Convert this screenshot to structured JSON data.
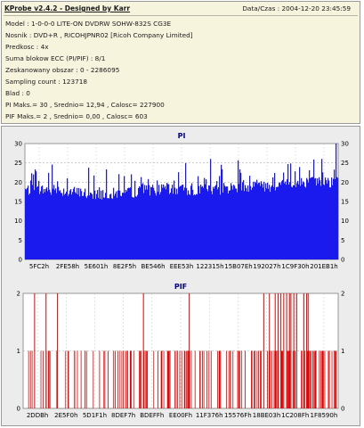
{
  "app": {
    "title": "KProbe v2.4.2 - Designed by Karr",
    "datetime_label": "Data/Czas :",
    "datetime_value": "2004-12-20 23:45:59"
  },
  "info_lines": [
    "Model : 1-0-0-0 LITE-ON DVDRW SOHW-832S  CG3E",
    "Nosnik : DVD+R , RICOHJPNR02 [Ricoh Company Limited]",
    "Predkosc : 4x",
    "Suma blokow ECC (PI/PIF) : 8/1",
    "Zeskanowany obszar : 0 - 2286095",
    "Sampling count : 123718",
    "Blad : 0",
    "PI Maks.= 30 , Srednio= 12,94 , Calosc= 227900",
    "PIF Maks.= 2 , Srednio= 0,00 , Calosc= 603"
  ],
  "colors": {
    "panel_bg": "#f7f4de",
    "chart_bg": "#ffffff",
    "pi_bar": "#1a1aee",
    "pif_bar": "#dd0000",
    "title_color": "#000080"
  },
  "chart_data": [
    {
      "type": "bar",
      "title": "PI",
      "ylim": [
        0,
        30
      ],
      "y_ticks": [
        0,
        5,
        10,
        15,
        20,
        25,
        30
      ],
      "x_ticks": [
        "5FC2h",
        "2FE58h",
        "5E601h",
        "8E2F5h",
        "BE546h",
        "EEE53h",
        "122315h",
        "15B07Eh",
        "192027h",
        "1C9F30h",
        "201EB1h"
      ],
      "grid": true,
      "avg_envelope": [
        18,
        18,
        17,
        17,
        18,
        18,
        18,
        19,
        19,
        20,
        20
      ],
      "peak_envelope": [
        24,
        26,
        25,
        24,
        24,
        25,
        27,
        26,
        26,
        27,
        28
      ]
    },
    {
      "type": "bar",
      "title": "PIF",
      "ylim": [
        0,
        2
      ],
      "y_ticks": [
        0,
        1,
        2
      ],
      "x_ticks": [
        "2DDBh",
        "2E5F0h",
        "5D1F1h",
        "8DEF7h",
        "BDEFFh",
        "EE00Fh",
        "11F376h",
        "15576Fh",
        "18BE03h",
        "1C208Fh",
        "1F8590h"
      ],
      "grid": true,
      "peaks_value_2": [
        0.4,
        0.8,
        1.2,
        4.2,
        5.8,
        8.4,
        8.6,
        8.8,
        8.9,
        9.0,
        9.1,
        9.2,
        9.3,
        9.35,
        9.45,
        9.55,
        9.8,
        9.9,
        9.95
      ]
    }
  ]
}
